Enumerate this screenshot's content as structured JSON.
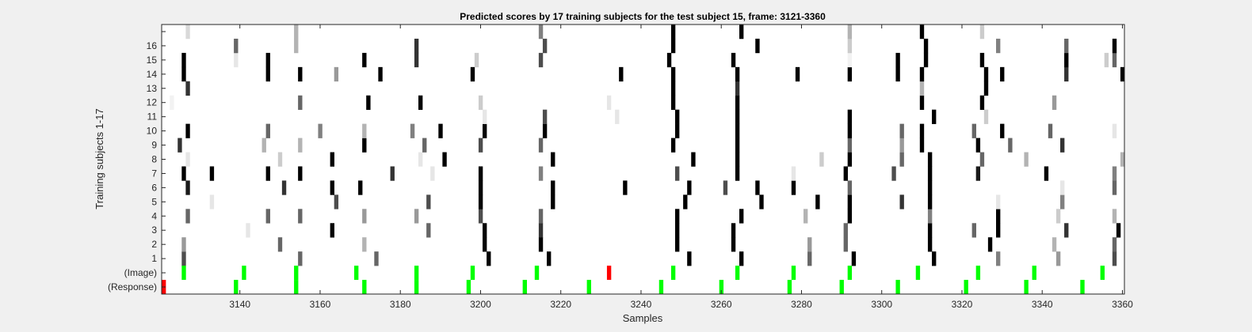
{
  "chart_data": {
    "type": "heatmap",
    "title": "Predicted scores by 17 training subjects for the test subject 15, frame: 3121-3360",
    "xlabel": "Samples",
    "ylabel": "Training subjects 1-17",
    "xlim": [
      3121,
      3360
    ],
    "x_ticks": [
      3140,
      3160,
      3180,
      3200,
      3220,
      3240,
      3260,
      3280,
      3300,
      3320,
      3340,
      3360
    ],
    "row_labels": [
      "(Response)",
      "(Image)",
      "1",
      "2",
      "3",
      "4",
      "5",
      "6",
      "7",
      "8",
      "9",
      "10",
      "11",
      "12",
      "13",
      "14",
      "15",
      "16",
      ""
    ],
    "colormap": "gray: 0 = white, 1 = black",
    "colors": {
      "background": "#ffffff",
      "marker_normal": "#00ff00",
      "marker_highlight": "#ff0000",
      "figure_bg": "#f0f0f0"
    },
    "response_row": {
      "green": [
        3139,
        3154,
        3171,
        3184,
        3197,
        3211,
        3227,
        3245,
        3260,
        3277,
        3290,
        3304,
        3321,
        3336,
        3350
      ],
      "red": [
        3121
      ]
    },
    "image_row": {
      "green": [
        3126,
        3141,
        3154,
        3169,
        3184,
        3198,
        3214,
        3248,
        3264,
        3278,
        3292,
        3309,
        3324,
        3338,
        3355
      ],
      "red": [
        3232
      ]
    },
    "subjects": [
      {
        "row": "1",
        "cells": [
          [
            3126,
            0.7
          ],
          [
            3155,
            0.6
          ],
          [
            3174,
            0.6
          ],
          [
            3202,
            1
          ],
          [
            3217,
            1
          ],
          [
            3252,
            1
          ],
          [
            3265,
            1
          ],
          [
            3282,
            0.6
          ],
          [
            3293,
            1
          ],
          [
            3313,
            1
          ],
          [
            3329,
            0.5
          ],
          [
            3344,
            0.4
          ],
          [
            3358,
            0.7
          ]
        ]
      },
      {
        "row": "2",
        "cells": [
          [
            3126,
            0.4
          ],
          [
            3150,
            0.6
          ],
          [
            3171,
            0.3
          ],
          [
            3201,
            1
          ],
          [
            3215,
            1
          ],
          [
            3249,
            1
          ],
          [
            3263,
            1
          ],
          [
            3282,
            0.4
          ],
          [
            3291,
            0.6
          ],
          [
            3312,
            1
          ],
          [
            3327,
            1
          ],
          [
            3343,
            0.3
          ],
          [
            3358,
            0.6
          ]
        ]
      },
      {
        "row": "3",
        "cells": [
          [
            3142,
            0.1
          ],
          [
            3163,
            1
          ],
          [
            3187,
            0.6
          ],
          [
            3201,
            1
          ],
          [
            3215,
            0.8
          ],
          [
            3249,
            1
          ],
          [
            3263,
            1
          ],
          [
            3291,
            0.6
          ],
          [
            3312,
            1
          ],
          [
            3323,
            0.6
          ],
          [
            3329,
            1
          ],
          [
            3346,
            0.8
          ],
          [
            3359,
            1
          ]
        ]
      },
      {
        "row": "4",
        "cells": [
          [
            3127,
            0.6
          ],
          [
            3147,
            0.6
          ],
          [
            3155,
            0.6
          ],
          [
            3171,
            0.4
          ],
          [
            3184,
            0.4
          ],
          [
            3200,
            0.7
          ],
          [
            3215,
            0.6
          ],
          [
            3249,
            1
          ],
          [
            3265,
            1
          ],
          [
            3281,
            0.3
          ],
          [
            3292,
            1
          ],
          [
            3312,
            0.5
          ],
          [
            3329,
            1
          ],
          [
            3344,
            0.2
          ],
          [
            3358,
            0.3
          ]
        ]
      },
      {
        "row": "5",
        "cells": [
          [
            3133,
            0.1
          ],
          [
            3164,
            0.7
          ],
          [
            3187,
            0.7
          ],
          [
            3200,
            1
          ],
          [
            3218,
            1
          ],
          [
            3251,
            1
          ],
          [
            3270,
            1
          ],
          [
            3284,
            1
          ],
          [
            3292,
            1
          ],
          [
            3305,
            0.8
          ],
          [
            3312,
            1
          ],
          [
            3329,
            0.1
          ],
          [
            3345,
            0.5
          ]
        ]
      },
      {
        "row": "6",
        "cells": [
          [
            3127,
            0.9
          ],
          [
            3151,
            0.8
          ],
          [
            3163,
            1
          ],
          [
            3170,
            1
          ],
          [
            3200,
            1
          ],
          [
            3218,
            1
          ],
          [
            3236,
            1
          ],
          [
            3252,
            1
          ],
          [
            3261,
            0.7
          ],
          [
            3269,
            1
          ],
          [
            3278,
            1
          ],
          [
            3292,
            0.6
          ],
          [
            3312,
            1
          ],
          [
            3345,
            0.1
          ],
          [
            3358,
            0.6
          ]
        ]
      },
      {
        "row": "7",
        "cells": [
          [
            3126,
            1
          ],
          [
            3133,
            1
          ],
          [
            3147,
            1
          ],
          [
            3155,
            1
          ],
          [
            3178,
            0.8
          ],
          [
            3188,
            0.1
          ],
          [
            3200,
            1
          ],
          [
            3215,
            0.5
          ],
          [
            3249,
            0.7
          ],
          [
            3264,
            1
          ],
          [
            3278,
            0.1
          ],
          [
            3291,
            1
          ],
          [
            3303,
            0.7
          ],
          [
            3312,
            1
          ],
          [
            3324,
            0.9
          ],
          [
            3341,
            1
          ],
          [
            3358,
            0.5
          ]
        ]
      },
      {
        "row": "8",
        "cells": [
          [
            3127,
            0.1
          ],
          [
            3150,
            0.2
          ],
          [
            3163,
            1
          ],
          [
            3185,
            0.1
          ],
          [
            3191,
            1
          ],
          [
            3218,
            1
          ],
          [
            3253,
            1
          ],
          [
            3264,
            1
          ],
          [
            3285,
            0.2
          ],
          [
            3292,
            1
          ],
          [
            3305,
            0.6
          ],
          [
            3312,
            1
          ],
          [
            3325,
            0.6
          ],
          [
            3336,
            0.3
          ],
          [
            3360,
            0.3
          ]
        ]
      },
      {
        "row": "9",
        "cells": [
          [
            3125,
            0.8
          ],
          [
            3146,
            0.3
          ],
          [
            3155,
            0.3
          ],
          [
            3171,
            1
          ],
          [
            3186,
            0.6
          ],
          [
            3200,
            0.7
          ],
          [
            3215,
            0.6
          ],
          [
            3248,
            1
          ],
          [
            3264,
            1
          ],
          [
            3292,
            0.6
          ],
          [
            3305,
            0.4
          ],
          [
            3310,
            1
          ],
          [
            3324,
            1
          ],
          [
            3332,
            0.6
          ],
          [
            3345,
            0.8
          ]
        ]
      },
      {
        "row": "10",
        "cells": [
          [
            3127,
            1
          ],
          [
            3147,
            0.6
          ],
          [
            3160,
            0.5
          ],
          [
            3171,
            0.3
          ],
          [
            3183,
            0.5
          ],
          [
            3190,
            1
          ],
          [
            3201,
            1
          ],
          [
            3216,
            1
          ],
          [
            3249,
            1
          ],
          [
            3264,
            1
          ],
          [
            3292,
            1
          ],
          [
            3305,
            0.6
          ],
          [
            3310,
            1
          ],
          [
            3323,
            0.6
          ],
          [
            3330,
            1
          ],
          [
            3342,
            0.6
          ],
          [
            3358,
            0.1
          ]
        ]
      },
      {
        "row": "11",
        "cells": [
          [
            3201,
            0.1
          ],
          [
            3234,
            0.1
          ],
          [
            3216,
            0.7
          ],
          [
            3249,
            1
          ],
          [
            3264,
            1
          ],
          [
            3292,
            1
          ],
          [
            3313,
            1
          ],
          [
            3326,
            0.2
          ]
        ]
      },
      {
        "row": "12",
        "cells": [
          [
            3123,
            0.05
          ],
          [
            3155,
            0.6
          ],
          [
            3172,
            1
          ],
          [
            3185,
            1
          ],
          [
            3200,
            0.2
          ],
          [
            3232,
            0.1
          ],
          [
            3248,
            1
          ],
          [
            3264,
            1
          ],
          [
            3310,
            1
          ],
          [
            3325,
            1
          ],
          [
            3343,
            0.4
          ]
        ]
      },
      {
        "row": "13",
        "cells": [
          [
            3127,
            0.8
          ],
          [
            3248,
            1
          ],
          [
            3264,
            0.8
          ],
          [
            3310,
            0.3
          ],
          [
            3326,
            1
          ]
        ]
      },
      {
        "row": "14",
        "cells": [
          [
            3126,
            1
          ],
          [
            3147,
            1
          ],
          [
            3155,
            1
          ],
          [
            3164,
            0.4
          ],
          [
            3175,
            1
          ],
          [
            3198,
            1
          ],
          [
            3235,
            1
          ],
          [
            3248,
            1
          ],
          [
            3264,
            1
          ],
          [
            3279,
            1
          ],
          [
            3292,
            1
          ],
          [
            3304,
            1
          ],
          [
            3310,
            1
          ],
          [
            3326,
            1
          ],
          [
            3330,
            1
          ],
          [
            3346,
            0.8
          ],
          [
            3360,
            1
          ]
        ]
      },
      {
        "row": "15",
        "cells": [
          [
            3126,
            1
          ],
          [
            3139,
            0.1
          ],
          [
            3147,
            1
          ],
          [
            3171,
            1
          ],
          [
            3184,
            0.8
          ],
          [
            3199,
            0.2
          ],
          [
            3215,
            0.7
          ],
          [
            3247,
            1
          ],
          [
            3263,
            1
          ],
          [
            3292,
            0.05
          ],
          [
            3304,
            1
          ],
          [
            3311,
            1
          ],
          [
            3325,
            1
          ],
          [
            3346,
            1
          ],
          [
            3356,
            0.2
          ],
          [
            3358,
            0.6
          ]
        ]
      },
      {
        "row": "16",
        "cells": [
          [
            3139,
            0.6
          ],
          [
            3154,
            0.3
          ],
          [
            3184,
            0.8
          ],
          [
            3216,
            0.7
          ],
          [
            3248,
            1
          ],
          [
            3269,
            1
          ],
          [
            3292,
            0.2
          ],
          [
            3311,
            1
          ],
          [
            3329,
            0.5
          ],
          [
            3346,
            0.6
          ],
          [
            3358,
            1
          ]
        ]
      },
      {
        "row": "17",
        "cells": [
          [
            3127,
            0.15
          ],
          [
            3154,
            0.3
          ],
          [
            3215,
            0.5
          ],
          [
            3248,
            1
          ],
          [
            3265,
            1
          ],
          [
            3292,
            0.3
          ],
          [
            3310,
            1
          ],
          [
            3325,
            0.2
          ]
        ]
      }
    ]
  }
}
